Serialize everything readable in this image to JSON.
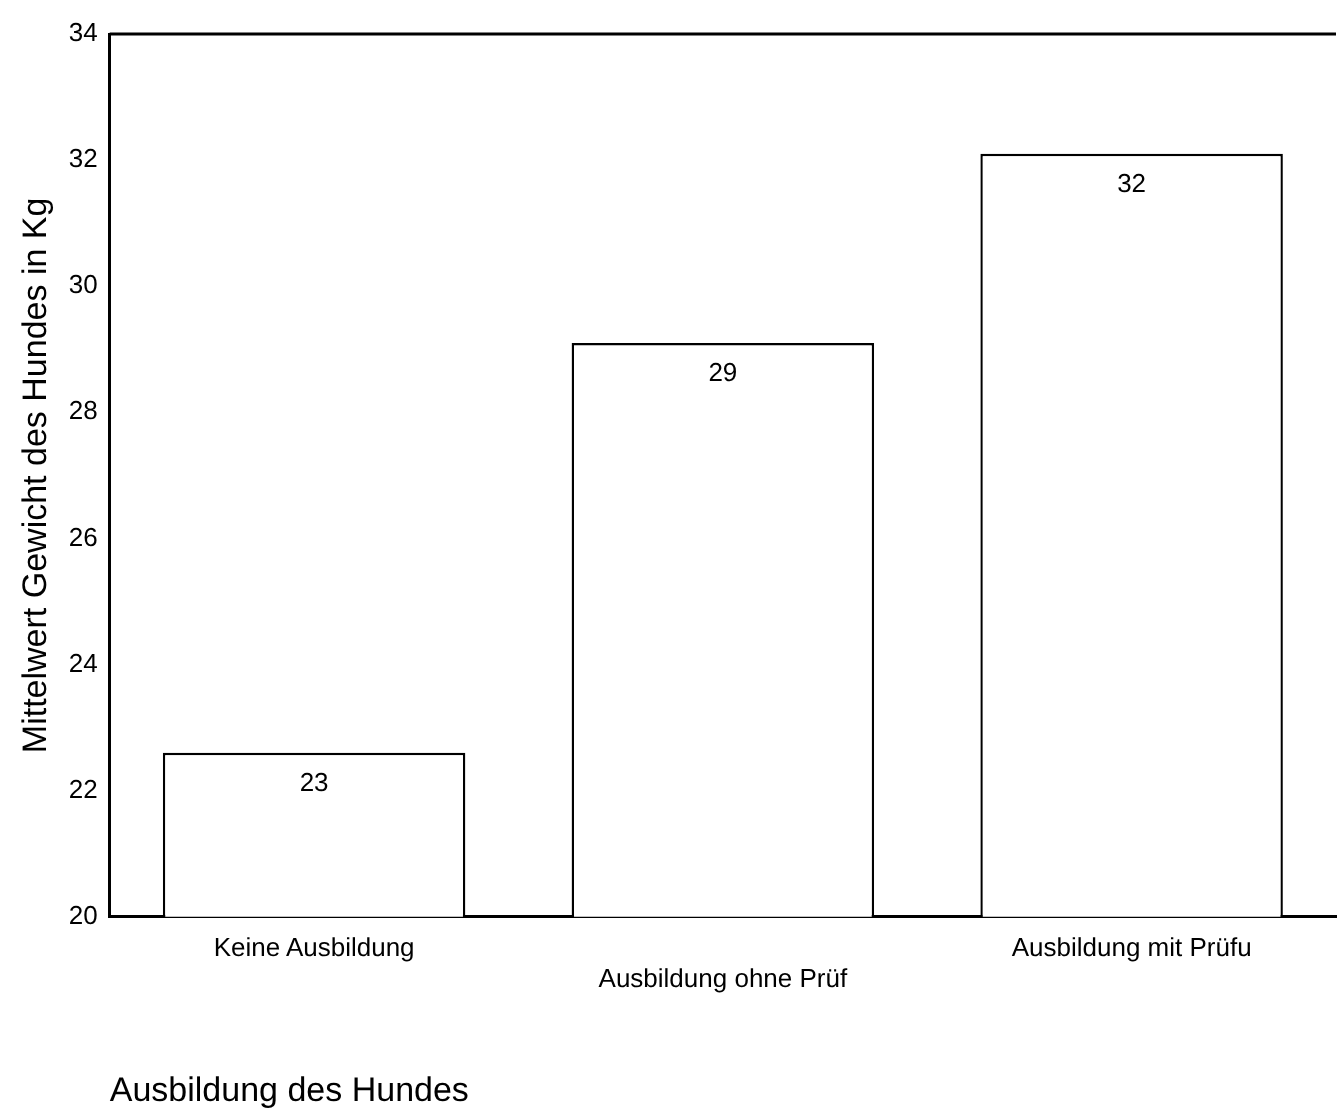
{
  "chart_data": {
    "type": "bar",
    "xlabel": "Ausbildung des Hundes",
    "ylabel": "Mittelwert Gewicht des Hundes in Kg",
    "categories": [
      "Keine Ausbildung",
      "Ausbildung ohne Prüf",
      "Ausbildung mit Prüfu"
    ],
    "values": [
      22.6,
      29.1,
      32.1
    ],
    "value_labels": [
      "23",
      "29",
      "32"
    ],
    "color": "#ffffff",
    "ylim": [
      20,
      34
    ],
    "yticks": [
      20,
      22,
      24,
      26,
      28,
      30,
      32,
      34
    ],
    "grid": false,
    "legend": false
  }
}
